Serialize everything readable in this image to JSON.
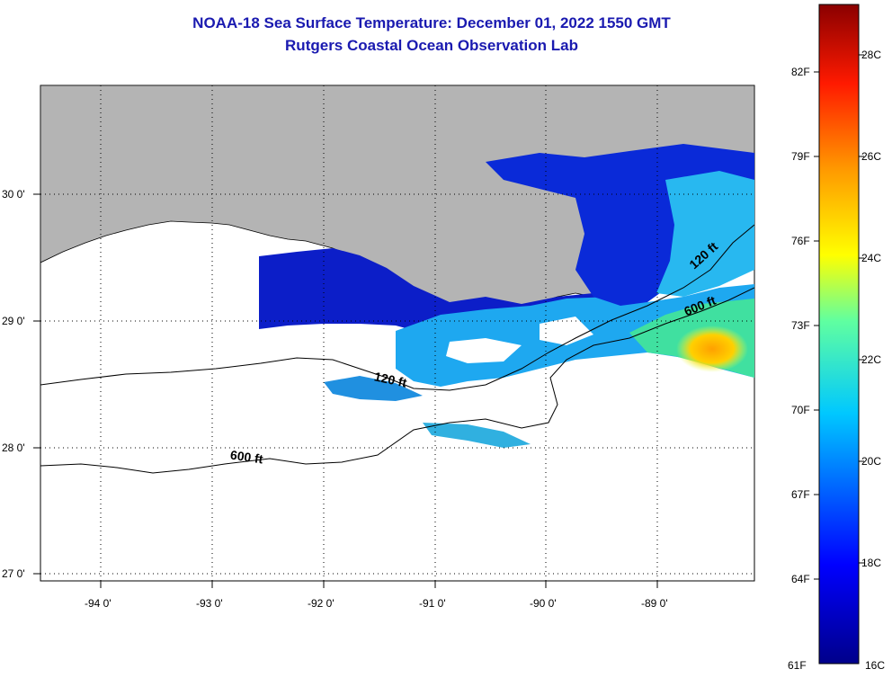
{
  "title": "NOAA-18 Sea Surface Temperature:  December 01, 2022 1550 GMT",
  "subtitle": "Rutgers Coastal Ocean Observation Lab",
  "map": {
    "lon_labels": [
      "-94 0'",
      "-93 0'",
      "-92 0'",
      "-91 0'",
      "-90 0'",
      "-89 0'"
    ],
    "lat_labels": [
      "30 0'",
      "29 0'",
      "28 0'",
      "27 0'"
    ],
    "contour_labels": [
      "120 ft",
      "600 ft",
      "120 ft",
      "600 ft"
    ],
    "land_color": "#b4b4b4"
  },
  "colorbar": {
    "fahrenheit_labels": [
      "82F",
      "79F",
      "76F",
      "73F",
      "70F",
      "67F",
      "64F",
      "61F"
    ],
    "celsius_labels": [
      "28C",
      "26C",
      "24C",
      "22C",
      "20C",
      "18C",
      "16C"
    ],
    "colors": [
      "#000080",
      "#0000ff",
      "#00ffff",
      "#ffff00",
      "#ff0000",
      "#800000"
    ]
  }
}
